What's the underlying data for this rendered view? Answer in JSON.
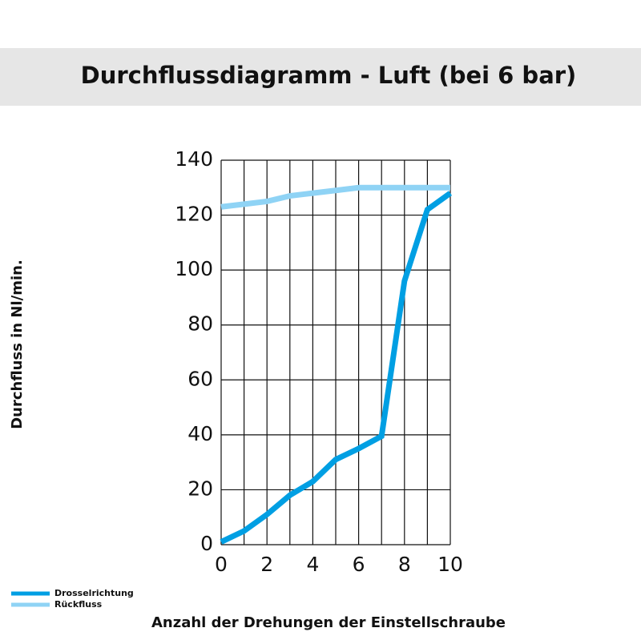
{
  "chart_data": {
    "type": "line",
    "title": "Durchflussdiagramm - Luft (bei 6 bar)",
    "x_label": "Anzahl der Drehungen der Einstellschraube",
    "y_label": "Durchfluss in Nl/min.",
    "x": [
      0,
      1,
      2,
      3,
      4,
      5,
      6,
      7,
      8,
      9,
      10
    ],
    "series": [
      {
        "name": "Drosselrichtung",
        "color": "#009fe3",
        "values": [
          1,
          5,
          11,
          18,
          23,
          31,
          35,
          39.5,
          96,
          122,
          128
        ]
      },
      {
        "name": "Rückfluss",
        "color": "#8fd3f5",
        "values": [
          123,
          124,
          125,
          127,
          128,
          129,
          130,
          130,
          130,
          130,
          130
        ]
      }
    ],
    "xlim": [
      0,
      10
    ],
    "xticks": [
      0,
      2,
      4,
      6,
      8,
      10
    ],
    "xminorticks": [
      1,
      3,
      5,
      7,
      9
    ],
    "ylim": [
      0,
      140
    ],
    "yticks": [
      0,
      20,
      40,
      60,
      80,
      100,
      120,
      140
    ],
    "grid": true,
    "legend": "bottom-left"
  }
}
